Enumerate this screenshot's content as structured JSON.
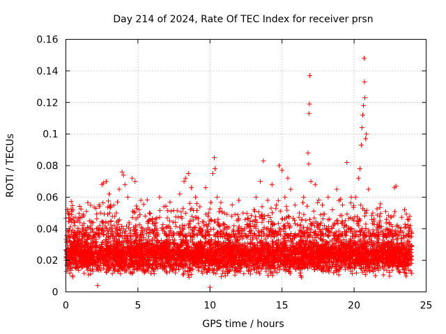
{
  "chart_data": {
    "type": "scatter",
    "title": "Day 214 of 2024, Rate Of TEC Index for receiver prsn",
    "xlabel": "GPS time / hours",
    "ylabel": "ROTI / TECUs",
    "xlim": [
      0,
      25
    ],
    "ylim": [
      0,
      0.16
    ],
    "x_ticks": [
      0,
      5,
      10,
      15,
      20,
      25
    ],
    "x_tick_labels": [
      "0",
      "5",
      "10",
      "15",
      "20",
      "25"
    ],
    "y_ticks": [
      0,
      0.02,
      0.04,
      0.06,
      0.08,
      0.1,
      0.12,
      0.14,
      0.16
    ],
    "y_tick_labels": [
      "0",
      "0.02",
      "0.04",
      "0.06",
      "0.08",
      "0.1",
      "0.12",
      "0.14",
      "0.16"
    ],
    "grid": true,
    "marker": "plus",
    "color": "#ff0000",
    "series": [
      {
        "name": "ROTI",
        "points": [
          [
            0.1,
            0.052
          ],
          [
            0.2,
            0.047
          ],
          [
            0.3,
            0.046
          ],
          [
            0.4,
            0.051
          ],
          [
            0.6,
            0.035
          ],
          [
            0.9,
            0.033
          ],
          [
            1.3,
            0.036
          ],
          [
            1.5,
            0.041
          ],
          [
            1.9,
            0.038
          ],
          [
            2.2,
            0.004
          ],
          [
            2.4,
            0.05
          ],
          [
            2.5,
            0.068
          ],
          [
            2.6,
            0.069
          ],
          [
            2.8,
            0.07
          ],
          [
            3.0,
            0.062
          ],
          [
            3.1,
            0.055
          ],
          [
            3.5,
            0.05
          ],
          [
            3.7,
            0.065
          ],
          [
            3.9,
            0.076
          ],
          [
            4.0,
            0.074
          ],
          [
            4.1,
            0.068
          ],
          [
            4.3,
            0.06
          ],
          [
            4.6,
            0.072
          ],
          [
            4.8,
            0.07
          ],
          [
            5.2,
            0.058
          ],
          [
            5.5,
            0.048
          ],
          [
            5.8,
            0.05
          ],
          [
            6.2,
            0.046
          ],
          [
            6.5,
            0.06
          ],
          [
            6.8,
            0.054
          ],
          [
            7.2,
            0.045
          ],
          [
            7.6,
            0.044
          ],
          [
            7.9,
            0.062
          ],
          [
            8.2,
            0.07
          ],
          [
            8.3,
            0.072
          ],
          [
            8.5,
            0.075
          ],
          [
            8.7,
            0.066
          ],
          [
            9.0,
            0.06
          ],
          [
            9.3,
            0.054
          ],
          [
            9.7,
            0.066
          ],
          [
            9.9,
            0.05
          ],
          [
            10.0,
            0.003
          ],
          [
            10.2,
            0.075
          ],
          [
            10.3,
            0.085
          ],
          [
            10.35,
            0.078
          ],
          [
            10.5,
            0.06
          ],
          [
            11.0,
            0.05
          ],
          [
            11.5,
            0.048
          ],
          [
            12.0,
            0.058
          ],
          [
            12.3,
            0.05
          ],
          [
            12.8,
            0.045
          ],
          [
            13.2,
            0.06
          ],
          [
            13.5,
            0.07
          ],
          [
            13.7,
            0.083
          ],
          [
            14.0,
            0.058
          ],
          [
            14.3,
            0.068
          ],
          [
            14.6,
            0.055
          ],
          [
            14.8,
            0.08
          ],
          [
            15.0,
            0.077
          ],
          [
            15.2,
            0.06
          ],
          [
            15.4,
            0.072
          ],
          [
            15.6,
            0.065
          ],
          [
            15.9,
            0.055
          ],
          [
            16.2,
            0.05
          ],
          [
            16.5,
            0.06
          ],
          [
            16.8,
            0.088
          ],
          [
            16.85,
            0.081
          ],
          [
            16.87,
            0.113
          ],
          [
            16.9,
            0.119
          ],
          [
            16.92,
            0.137
          ],
          [
            17.0,
            0.07
          ],
          [
            17.3,
            0.068
          ],
          [
            17.8,
            0.055
          ],
          [
            18.2,
            0.06
          ],
          [
            18.5,
            0.052
          ],
          [
            18.8,
            0.065
          ],
          [
            19.2,
            0.055
          ],
          [
            19.5,
            0.082
          ],
          [
            19.8,
            0.06
          ],
          [
            20.1,
            0.06
          ],
          [
            20.3,
            0.072
          ],
          [
            20.4,
            0.078
          ],
          [
            20.5,
            0.093
          ],
          [
            20.55,
            0.104
          ],
          [
            20.6,
            0.112
          ],
          [
            20.65,
            0.118
          ],
          [
            20.7,
            0.148
          ],
          [
            20.72,
            0.133
          ],
          [
            20.75,
            0.123
          ],
          [
            20.8,
            0.097
          ],
          [
            20.85,
            0.1
          ],
          [
            21.0,
            0.065
          ],
          [
            21.3,
            0.05
          ],
          [
            21.8,
            0.045
          ],
          [
            22.3,
            0.04
          ],
          [
            22.8,
            0.066
          ],
          [
            22.9,
            0.067
          ],
          [
            23.5,
            0.052
          ],
          [
            23.7,
            0.046
          ],
          [
            23.9,
            0.042
          ]
        ],
        "dense_band": {
          "x_range": [
            0,
            24
          ],
          "y_min": 0.008,
          "y_max": 0.035,
          "typical": 0.02,
          "samples_per_hour": 200
        }
      }
    ]
  }
}
